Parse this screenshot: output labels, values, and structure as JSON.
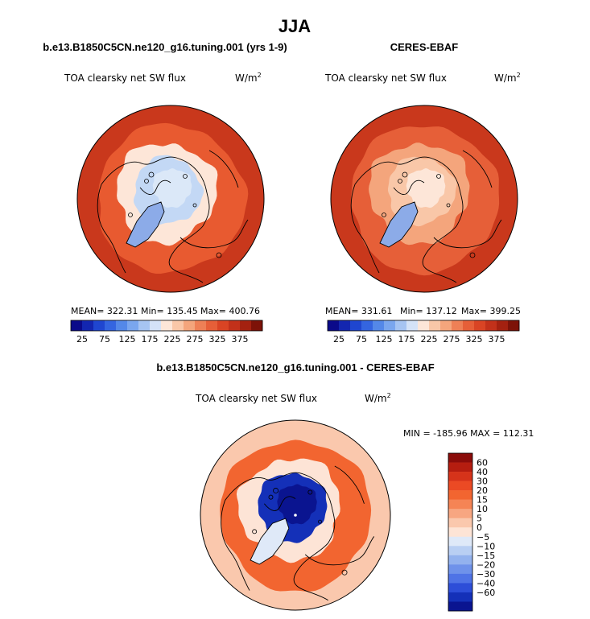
{
  "figure": {
    "title": "JJA"
  },
  "chart_data": [
    {
      "type": "heatmap",
      "projection": "north-polar-stereographic",
      "title": "b.e13.B1850C5CN.ne120_g16.tuning.001 (yrs 1-9)",
      "variable": "TOA clearsky net SW flux",
      "units": "W/m",
      "units_power": "2",
      "stats": {
        "mean": "MEAN= 322.31",
        "min": "Min= 135.45",
        "max": "Max= 400.76"
      },
      "colorbar_ticks": [
        "25",
        "75",
        "125",
        "175",
        "225",
        "275",
        "325",
        "375"
      ],
      "color_levels": [
        "#0b0a8a",
        "#1326b0",
        "#1f46d0",
        "#3465e0",
        "#5488e8",
        "#7aa6ee",
        "#a6c4f2",
        "#d4e2f7",
        "#fde6d8",
        "#f9c7a8",
        "#f4a57c",
        "#ee8056",
        "#e65f38",
        "#d94424",
        "#c2311a",
        "#a42110",
        "#7d1208"
      ],
      "regions": {
        "pole": "#dbe8f8",
        "arctic_ocean": "#c3d8f5",
        "greenland": "#8cabe8",
        "subarctic": "#fde6d8",
        "midlatitude": "#e85a30",
        "outer": "#c9381c"
      }
    },
    {
      "type": "heatmap",
      "projection": "north-polar-stereographic",
      "title": "CERES-EBAF",
      "variable": "TOA clearsky net SW flux",
      "units": "W/m",
      "units_power": "2",
      "stats": {
        "mean": "MEAN= 331.61",
        "min": "Min= 137.12",
        "max": "Max= 399.25"
      },
      "colorbar_ticks": [
        "25",
        "75",
        "125",
        "175",
        "225",
        "275",
        "325",
        "375"
      ],
      "color_levels": [
        "#0b0a8a",
        "#1326b0",
        "#1f46d0",
        "#3465e0",
        "#5488e8",
        "#7aa6ee",
        "#a6c4f2",
        "#d4e2f7",
        "#fde6d8",
        "#f9c7a8",
        "#f4a57c",
        "#ee8056",
        "#e65f38",
        "#d94424",
        "#c2311a",
        "#a42110",
        "#7d1208"
      ],
      "regions": {
        "pole": "#fde6d8",
        "arctic_ocean": "#f9c7a8",
        "greenland": "#8cabe8",
        "subarctic": "#f4a57c",
        "midlatitude": "#e65f38",
        "outer": "#c9381c"
      }
    },
    {
      "type": "heatmap",
      "projection": "north-polar-stereographic",
      "title": "b.e13.B1850C5CN.ne120_g16.tuning.001 - CERES-EBAF",
      "variable": "TOA clearsky net SW flux",
      "units": "W/m",
      "units_power": "2",
      "stats": {
        "min_max": "MIN = -185.96 MAX = 112.31"
      },
      "colorbar_ticks": [
        "60",
        "40",
        "30",
        "20",
        "15",
        "10",
        "5",
        "0",
        "−5",
        "−10",
        "−15",
        "−20",
        "−30",
        "−40",
        "−60"
      ],
      "color_levels": [
        "#8a0c0a",
        "#b51d10",
        "#d6331a",
        "#eb4a24",
        "#f26530",
        "#f58455",
        "#f7a681",
        "#fac8ad",
        "#fde4d6",
        "#dfe9f8",
        "#b9cff3",
        "#93b2ee",
        "#6f92ea",
        "#4f73e6",
        "#2d4ed8",
        "#1430b8",
        "#0a1490"
      ],
      "regions": {
        "pole": "#0a1490",
        "arctic_ocean": "#1430b8",
        "greenland": "#dfe9f8",
        "subarctic": "#fde4d6",
        "midlatitude": "#f26530",
        "outer": "#fac8ad"
      }
    }
  ]
}
